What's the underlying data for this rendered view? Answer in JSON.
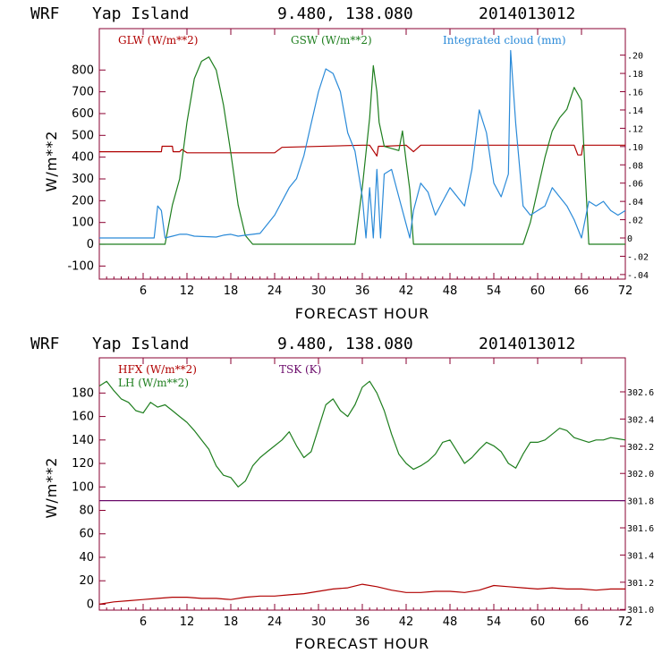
{
  "panels": [
    {
      "header": {
        "model": "WRF",
        "location": "Yap Island",
        "coords": "9.480, 138.080",
        "init": "2014013012"
      }
    },
    {
      "header": {
        "model": "WRF",
        "location": "Yap Island",
        "coords": "9.480, 138.080",
        "init": "2014013012"
      }
    }
  ],
  "colors": {
    "red": "#b00000",
    "green": "#1e7e1e",
    "blue": "#2a8ad8",
    "purple": "#6a0a6a",
    "axis": "#8a0030"
  },
  "chart_data": [
    {
      "type": "line",
      "xlabel": "FORECAST HOUR",
      "ylabel": "W/m**2",
      "xlim": [
        0,
        72
      ],
      "ylim": [
        -160,
        990
      ],
      "y2lim": [
        -0.045,
        0.229
      ],
      "xticks": [
        "6",
        "12",
        "18",
        "24",
        "30",
        "36",
        "42",
        "48",
        "54",
        "60",
        "66",
        "72"
      ],
      "yticks": [
        "-100",
        "0",
        "100",
        "200",
        "300",
        "400",
        "500",
        "600",
        "700",
        "800"
      ],
      "y2ticks": [
        ".20",
        ".18",
        ".16",
        ".14",
        ".12",
        ".10",
        ".08",
        ".06",
        ".04",
        ".02",
        "0",
        "-.02",
        "-.04"
      ],
      "series": [
        {
          "name": "GLW (W/m**2)",
          "axis": "left",
          "color": "#b00000",
          "x": [
            0,
            8.5,
            8.6,
            10,
            10.1,
            11,
            11.3,
            12,
            18,
            24,
            25,
            36,
            37,
            38,
            38.2,
            39,
            42,
            43,
            44,
            60,
            60.2,
            65,
            65.5,
            66,
            66.2,
            72
          ],
          "y": [
            425,
            425,
            450,
            450,
            425,
            425,
            435,
            420,
            420,
            420,
            445,
            455,
            455,
            405,
            450,
            450,
            455,
            425,
            455,
            455,
            455,
            455,
            410,
            410,
            455,
            455
          ]
        },
        {
          "name": "GSW (W/m**2)",
          "axis": "left",
          "color": "#1e7e1e",
          "x": [
            0,
            9,
            10,
            11,
            12,
            13,
            14,
            15,
            16,
            17,
            18,
            19,
            20,
            21,
            35,
            36,
            37,
            37.5,
            38,
            38.3,
            39,
            40,
            41,
            41.5,
            42,
            42.5,
            43,
            44,
            58,
            59,
            60,
            61,
            62,
            63,
            64,
            65,
            66,
            67,
            72
          ],
          "y": [
            0,
            0,
            180,
            300,
            560,
            760,
            840,
            860,
            800,
            640,
            420,
            180,
            40,
            0,
            0,
            260,
            580,
            820,
            700,
            560,
            450,
            440,
            430,
            520,
            380,
            250,
            0,
            0,
            0,
            100,
            250,
            400,
            520,
            580,
            620,
            720,
            660,
            0,
            0
          ]
        },
        {
          "name": "Integrated cloud (mm)",
          "axis": "right",
          "color": "#2a8ad8",
          "x": [
            0,
            7.5,
            8,
            8.5,
            9,
            10,
            11,
            12,
            13,
            16,
            17,
            18,
            19,
            20,
            22,
            24,
            26,
            27,
            28,
            29,
            30,
            31,
            32,
            33,
            34,
            35,
            36,
            36.5,
            37,
            37.5,
            38,
            38.5,
            39,
            40,
            41,
            42,
            42.5,
            43,
            44,
            45,
            46,
            47,
            48,
            49,
            50,
            51,
            52,
            53,
            54,
            55,
            56,
            56.3,
            57,
            58,
            59,
            60,
            61,
            62,
            63,
            64,
            65,
            66,
            67,
            68,
            69,
            70,
            71,
            72
          ],
          "y": [
            0,
            0,
            0.035,
            0.03,
            0,
            0.002,
            0.004,
            0.004,
            0.002,
            0.001,
            0.003,
            0.004,
            0.002,
            0.003,
            0.005,
            0.025,
            0.055,
            0.065,
            0.09,
            0.125,
            0.16,
            0.185,
            0.18,
            0.16,
            0.115,
            0.095,
            0.045,
            0.0,
            0.055,
            0.0,
            0.075,
            0.0,
            0.07,
            0.075,
            0.045,
            0.015,
            0.0,
            0.03,
            0.06,
            0.05,
            0.025,
            0.04,
            0.055,
            0.045,
            0.035,
            0.075,
            0.14,
            0.115,
            0.06,
            0.045,
            0.07,
            0.205,
            0.125,
            0.035,
            0.025,
            0.03,
            0.035,
            0.055,
            0.045,
            0.035,
            0.02,
            0.0,
            0.04,
            0.035,
            0.04,
            0.03,
            0.025,
            0.03
          ]
        }
      ],
      "legend": {
        "placement": "top"
      }
    },
    {
      "type": "line",
      "xlabel": "FORECAST HOUR",
      "ylabel": "W/m**2",
      "xlim": [
        0,
        72
      ],
      "ylim": [
        -5,
        210
      ],
      "y2lim": [
        300.995,
        302.85
      ],
      "xticks": [
        "6",
        "12",
        "18",
        "24",
        "30",
        "36",
        "42",
        "48",
        "54",
        "60",
        "66",
        "72"
      ],
      "yticks": [
        "0",
        "20",
        "40",
        "60",
        "80",
        "100",
        "120",
        "140",
        "160",
        "180"
      ],
      "y2ticks": [
        "302.6",
        "302.4",
        "302.2",
        "302.0",
        "301.8",
        "301.6",
        "301.4",
        "301.2",
        "301.0"
      ],
      "series": [
        {
          "name": "HFX (W/m**2)",
          "axis": "left",
          "color": "#b00000",
          "x": [
            0,
            2,
            4,
            6,
            8,
            10,
            12,
            14,
            16,
            18,
            20,
            22,
            24,
            26,
            28,
            30,
            32,
            34,
            36,
            38,
            40,
            42,
            44,
            46,
            48,
            50,
            52,
            54,
            56,
            58,
            60,
            62,
            64,
            66,
            68,
            70,
            72
          ],
          "y": [
            0,
            2,
            3,
            4,
            5,
            6,
            6,
            5,
            5,
            4,
            6,
            7,
            7,
            8,
            9,
            11,
            13,
            14,
            17,
            15,
            12,
            10,
            10,
            11,
            11,
            10,
            12,
            16,
            15,
            14,
            13,
            14,
            13,
            13,
            12,
            13,
            13
          ]
        },
        {
          "name": "LH  (W/m**2)",
          "axis": "left",
          "color": "#1e7e1e",
          "x": [
            0,
            1,
            2,
            3,
            4,
            5,
            6,
            7,
            8,
            9,
            10,
            11,
            12,
            13,
            14,
            15,
            16,
            17,
            18,
            19,
            20,
            21,
            22,
            23,
            24,
            25,
            26,
            27,
            28,
            29,
            30,
            31,
            32,
            33,
            34,
            35,
            36,
            37,
            38,
            39,
            40,
            41,
            42,
            43,
            44,
            45,
            46,
            47,
            48,
            49,
            50,
            51,
            52,
            53,
            54,
            55,
            56,
            57,
            58,
            59,
            60,
            61,
            62,
            63,
            64,
            65,
            66,
            67,
            68,
            69,
            70,
            71,
            72
          ],
          "y": [
            186,
            190,
            182,
            175,
            172,
            165,
            163,
            172,
            168,
            170,
            165,
            160,
            155,
            148,
            140,
            132,
            118,
            110,
            108,
            100,
            105,
            118,
            125,
            130,
            135,
            140,
            147,
            135,
            125,
            130,
            150,
            170,
            175,
            165,
            160,
            170,
            185,
            190,
            180,
            165,
            145,
            128,
            120,
            115,
            118,
            122,
            128,
            138,
            140,
            130,
            120,
            125,
            132,
            138,
            135,
            130,
            120,
            116,
            128,
            138,
            138,
            140,
            145,
            150,
            148,
            142,
            140,
            138,
            140,
            140,
            142,
            141,
            140
          ]
        },
        {
          "name": "TSK (K)",
          "axis": "right",
          "color": "#6a0a6a",
          "x": [
            0,
            72
          ],
          "y": [
            301.8,
            301.8
          ]
        }
      ],
      "legend": {
        "placement": "top-left"
      }
    }
  ]
}
